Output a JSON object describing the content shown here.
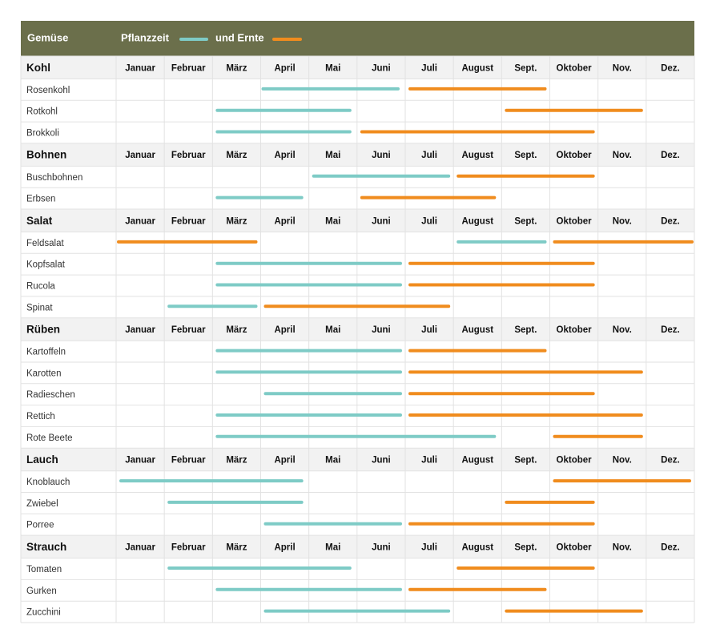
{
  "header": {
    "first_col": "Gemüse",
    "legend": [
      {
        "label": "Pflanzzeit",
        "color": "#7ecbc6"
      },
      {
        "label": "und Ernte",
        "color": "#f08c1e"
      }
    ]
  },
  "colors": {
    "header_bg": "#6b6f4b",
    "group_bg": "#f2f2f2",
    "grid": "#e2e2e2",
    "plant": "#7ecbc6",
    "harvest": "#f08c1e"
  },
  "chart_data": {
    "type": "gantt",
    "months": [
      "Januar",
      "Februar",
      "März",
      "April",
      "Mai",
      "Juni",
      "Juli",
      "August",
      "Sept.",
      "Oktober",
      "Nov.",
      "Dez."
    ],
    "series": [
      {
        "name": "Pflanzzeit",
        "color": "#7ecbc6"
      },
      {
        "name": "und Ernte",
        "color": "#f08c1e"
      }
    ],
    "groups": [
      {
        "name": "Kohl",
        "rows": [
          {
            "label": "Rosenkohl",
            "bars": [
              {
                "series": 0,
                "from": 4,
                "to": 6.9
              },
              {
                "series": 1,
                "from": 7.05,
                "to": 9.95
              }
            ]
          },
          {
            "label": "Rotkohl",
            "bars": [
              {
                "series": 0,
                "from": 3.05,
                "to": 5.9
              },
              {
                "series": 1,
                "from": 9.05,
                "to": 11.95
              }
            ]
          },
          {
            "label": "Brokkoli",
            "bars": [
              {
                "series": 0,
                "from": 3.05,
                "to": 5.9
              },
              {
                "series": 1,
                "from": 6.05,
                "to": 10.95
              }
            ]
          }
        ]
      },
      {
        "name": "Bohnen",
        "rows": [
          {
            "label": "Buschbohnen",
            "bars": [
              {
                "series": 0,
                "from": 5.05,
                "to": 7.95
              },
              {
                "series": 1,
                "from": 8.05,
                "to": 10.95
              }
            ]
          },
          {
            "label": "Erbsen",
            "bars": [
              {
                "series": 0,
                "from": 3.05,
                "to": 4.9
              },
              {
                "series": 1,
                "from": 6.05,
                "to": 8.9
              }
            ]
          }
        ]
      },
      {
        "name": "Salat",
        "rows": [
          {
            "label": "Feldsalat",
            "bars": [
              {
                "series": 1,
                "from": 1,
                "to": 3.95
              },
              {
                "series": 0,
                "from": 8.05,
                "to": 9.95
              },
              {
                "series": 1,
                "from": 10.05,
                "to": 13
              }
            ]
          },
          {
            "label": "Kopfsalat",
            "bars": [
              {
                "series": 0,
                "from": 3.05,
                "to": 6.95
              },
              {
                "series": 1,
                "from": 7.05,
                "to": 10.95
              }
            ]
          },
          {
            "label": "Rucola",
            "bars": [
              {
                "series": 0,
                "from": 3.05,
                "to": 6.95
              },
              {
                "series": 1,
                "from": 7.05,
                "to": 10.95
              }
            ]
          },
          {
            "label": "Spinat",
            "bars": [
              {
                "series": 0,
                "from": 2.05,
                "to": 3.95
              },
              {
                "series": 1,
                "from": 4.05,
                "to": 7.95
              }
            ]
          }
        ]
      },
      {
        "name": "Rüben",
        "rows": [
          {
            "label": "Kartoffeln",
            "bars": [
              {
                "series": 0,
                "from": 3.05,
                "to": 6.95
              },
              {
                "series": 1,
                "from": 7.05,
                "to": 9.95
              }
            ]
          },
          {
            "label": "Karotten",
            "bars": [
              {
                "series": 0,
                "from": 3.05,
                "to": 6.95
              },
              {
                "series": 1,
                "from": 7.05,
                "to": 11.95
              }
            ]
          },
          {
            "label": "Radieschen",
            "bars": [
              {
                "series": 0,
                "from": 4.05,
                "to": 6.95
              },
              {
                "series": 1,
                "from": 7.05,
                "to": 10.95
              }
            ]
          },
          {
            "label": "Rettich",
            "bars": [
              {
                "series": 0,
                "from": 3.05,
                "to": 6.95
              },
              {
                "series": 1,
                "from": 7.05,
                "to": 11.95
              }
            ]
          },
          {
            "label": "Rote Beete",
            "bars": [
              {
                "series": 0,
                "from": 3.05,
                "to": 8.9
              },
              {
                "series": 1,
                "from": 10.05,
                "to": 11.95
              }
            ]
          }
        ]
      },
      {
        "name": "Lauch",
        "rows": [
          {
            "label": "Knoblauch",
            "bars": [
              {
                "series": 0,
                "from": 1.05,
                "to": 4.9
              },
              {
                "series": 1,
                "from": 10.05,
                "to": 12.95
              }
            ]
          },
          {
            "label": "Zwiebel",
            "bars": [
              {
                "series": 0,
                "from": 2.05,
                "to": 4.9
              },
              {
                "series": 1,
                "from": 9.05,
                "to": 10.95
              }
            ]
          },
          {
            "label": "Porree",
            "bars": [
              {
                "series": 0,
                "from": 4.05,
                "to": 6.95
              },
              {
                "series": 1,
                "from": 7.05,
                "to": 10.95
              }
            ]
          }
        ]
      },
      {
        "name": "Strauch",
        "rows": [
          {
            "label": "Tomaten",
            "bars": [
              {
                "series": 0,
                "from": 2.05,
                "to": 5.9
              },
              {
                "series": 1,
                "from": 8.05,
                "to": 10.95
              }
            ]
          },
          {
            "label": "Gurken",
            "bars": [
              {
                "series": 0,
                "from": 3.05,
                "to": 6.95
              },
              {
                "series": 1,
                "from": 7.05,
                "to": 9.95
              }
            ]
          },
          {
            "label": "Zucchini",
            "bars": [
              {
                "series": 0,
                "from": 4.05,
                "to": 7.95
              },
              {
                "series": 1,
                "from": 9.05,
                "to": 11.95
              }
            ]
          }
        ]
      }
    ]
  }
}
